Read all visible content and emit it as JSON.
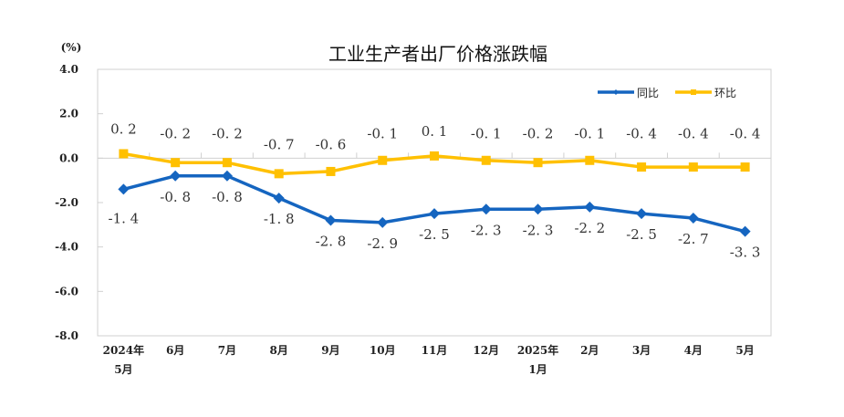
{
  "chart_data": {
    "type": "line",
    "title": "工业生产者出厂价格涨跌幅",
    "ylabel": "(%)",
    "xlabel": "",
    "ylim": [
      -8.0,
      4.0
    ],
    "yticks": [
      "4.0",
      "2.0",
      "0.0",
      "-2.0",
      "-4.0",
      "-6.0",
      "-8.0"
    ],
    "ytick_values": [
      4,
      2,
      0,
      -2,
      -4,
      -6,
      -8
    ],
    "categories": [
      [
        "2024年",
        "5月"
      ],
      [
        "6月"
      ],
      [
        "7月"
      ],
      [
        "8月"
      ],
      [
        "9月"
      ],
      [
        "10月"
      ],
      [
        "11月"
      ],
      [
        "12月"
      ],
      [
        "2025年",
        "1月"
      ],
      [
        "2月"
      ],
      [
        "3月"
      ],
      [
        "4月"
      ],
      [
        "5月"
      ]
    ],
    "legend_position": "top-right",
    "grid": false,
    "series": [
      {
        "name": "同比",
        "color": "#1565C0",
        "marker": "diamond",
        "values": [
          -1.4,
          -0.8,
          -0.8,
          -1.8,
          -2.8,
          -2.9,
          -2.5,
          -2.3,
          -2.3,
          -2.2,
          -2.5,
          -2.7,
          -3.3
        ]
      },
      {
        "name": "环比",
        "color": "#FFC000",
        "marker": "square",
        "values": [
          0.2,
          -0.2,
          -0.2,
          -0.7,
          -0.6,
          -0.1,
          0.1,
          -0.1,
          -0.2,
          -0.1,
          -0.4,
          -0.4,
          -0.4
        ]
      }
    ]
  }
}
